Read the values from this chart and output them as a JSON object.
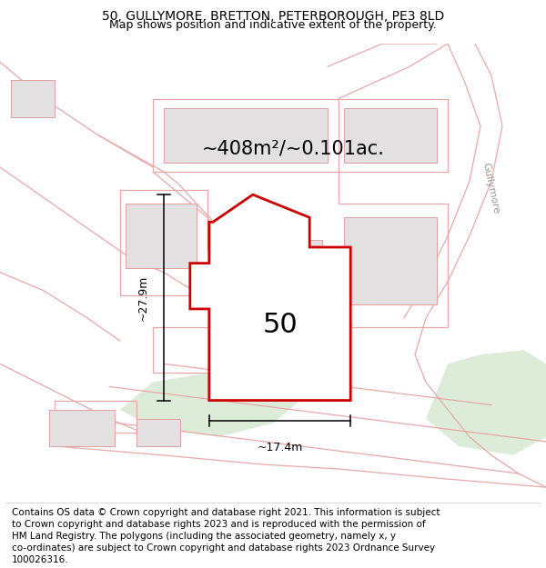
{
  "title_line1": "50, GULLYMORE, BRETTON, PETERBOROUGH, PE3 8LD",
  "title_line2": "Map shows position and indicative extent of the property.",
  "area_label": "~408m²/~0.101ac.",
  "number_label": "50",
  "width_label": "~17.4m",
  "height_label": "~27.9m",
  "street_label": "Gullymore",
  "road_color": "#e8a8a8",
  "building_fill": "#e2e0e0",
  "building_edge": "#e0a0a0",
  "green_fill": "#d4e8d0",
  "plot_edge": "#cc0000",
  "plot_fill": "#ffffff",
  "map_bg": "#f7f3f3",
  "footer_lines": [
    "Contains OS data © Crown copyright and database right 2021. This information is subject",
    "to Crown copyright and database rights 2023 and is reproduced with the permission of",
    "HM Land Registry. The polygons (including the associated geometry, namely x, y",
    "co-ordinates) are subject to Crown copyright and database rights 2023 Ordnance Survey",
    "100026316."
  ],
  "title_fs": 10,
  "subtitle_fs": 9,
  "area_fs": 15,
  "number_fs": 22,
  "footer_fs": 7.5,
  "street_fs": 8
}
